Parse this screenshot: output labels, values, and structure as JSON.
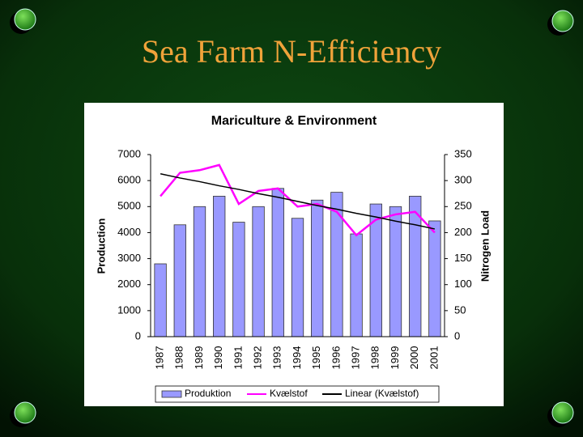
{
  "slide_title": "Sea Farm N-Efficiency",
  "chart_data": {
    "type": "bar",
    "title": "Mariculture & Environment",
    "y_label": "Production",
    "y2_label": "Nitrogen Load",
    "categories": [
      "1987",
      "1988",
      "1989",
      "1990",
      "1991",
      "1992",
      "1993",
      "1994",
      "1995",
      "1996",
      "1997",
      "1998",
      "1999",
      "2000",
      "2001"
    ],
    "ylim": [
      0,
      7000
    ],
    "yticks": [
      0,
      1000,
      2000,
      3000,
      4000,
      5000,
      6000,
      7000
    ],
    "y2lim": [
      0,
      350
    ],
    "y2ticks": [
      0,
      50,
      100,
      150,
      200,
      250,
      300,
      350
    ],
    "series": [
      {
        "name": "Produktion",
        "type": "bar",
        "color": "#9999ff",
        "values": [
          2800,
          4300,
          5000,
          5400,
          4400,
          5000,
          5700,
          4550,
          5250,
          5550,
          3950,
          5100,
          5000,
          5400,
          4450
        ]
      },
      {
        "name": "Kvælstof",
        "type": "line",
        "axis": "y2",
        "color": "#ff00ff",
        "values": [
          270,
          315,
          320,
          330,
          255,
          280,
          285,
          250,
          255,
          240,
          195,
          225,
          235,
          240,
          200
        ]
      },
      {
        "name": "Linear (Kvælstof)",
        "type": "line",
        "axis": "y2",
        "color": "#000000",
        "values": [
          313,
          305,
          298,
          290,
          283,
          275,
          268,
          260,
          252,
          245,
          237,
          230,
          222,
          215,
          207
        ]
      }
    ],
    "legend": "bottom"
  }
}
